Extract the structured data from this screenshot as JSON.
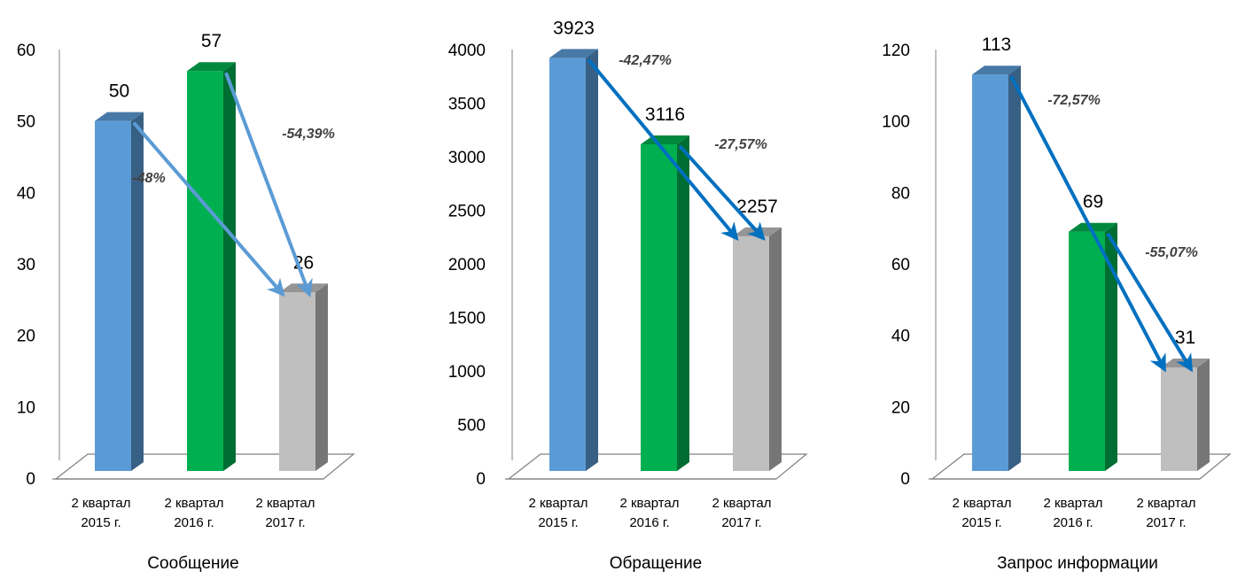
{
  "colors": {
    "bar_blue": "#5B9BD5",
    "bar_green": "#00B050",
    "bar_gray": "#BFBFBF",
    "arrow_light": "#5B9BD5",
    "arrow_dark": "#0070C0",
    "axis": "#808080",
    "label": "#000000",
    "pct_label": "#404040"
  },
  "chart_data": [
    {
      "type": "bar",
      "title": "Сообщение",
      "categories": [
        "2 квартал 2015 г.",
        "2 квартал 2016 г.",
        "2 квартал 2017 г."
      ],
      "values": [
        50,
        57,
        26
      ],
      "ylim": [
        0,
        60
      ],
      "yticks": [
        0,
        10,
        20,
        30,
        40,
        50,
        60
      ],
      "annotations": [
        {
          "text": "-48%",
          "from": 0,
          "to": 2
        },
        {
          "text": "-54,39%",
          "from": 1,
          "to": 2
        }
      ]
    },
    {
      "type": "bar",
      "title": "Обращение",
      "categories": [
        "2 квартал 2015 г.",
        "2 квартал 2016 г.",
        "2 квартал 2017 г."
      ],
      "values": [
        3923,
        3116,
        2257
      ],
      "ylim": [
        0,
        4000
      ],
      "yticks": [
        0,
        500,
        1000,
        1500,
        2000,
        2500,
        3000,
        3500,
        4000
      ],
      "annotations": [
        {
          "text": "-42,47%",
          "from": 0,
          "to": 2
        },
        {
          "text": "-27,57%",
          "from": 1,
          "to": 2
        }
      ]
    },
    {
      "type": "bar",
      "title": "Запрос информации",
      "categories": [
        "2 квартал 2015 г.",
        "2 квартал 2016 г.",
        "2 квартал 2017 г."
      ],
      "values": [
        113,
        69,
        31
      ],
      "ylim": [
        0,
        120
      ],
      "yticks": [
        0,
        20,
        40,
        60,
        80,
        100,
        120
      ],
      "annotations": [
        {
          "text": "-72,57%",
          "from": 0,
          "to": 2
        },
        {
          "text": "-55,07%",
          "from": 1,
          "to": 2
        }
      ]
    }
  ]
}
